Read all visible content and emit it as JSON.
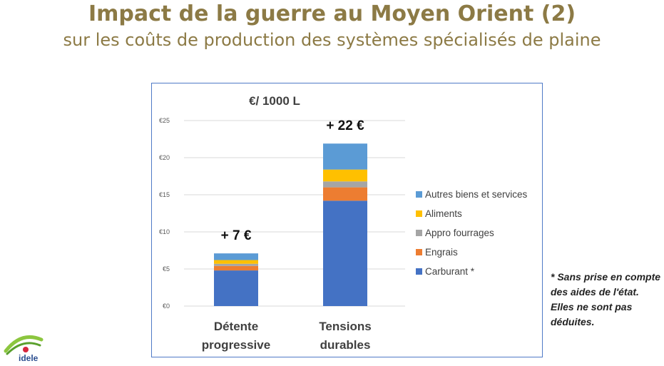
{
  "header": {
    "title": "Impact de la guerre au Moyen Orient (2)",
    "subtitle": "sur les coûts de production des systèmes spécialisés de plaine"
  },
  "note": {
    "text": "* Sans prise en compte des aides de l'état. Elles ne sont pas déduites."
  },
  "logo": {
    "text": "idele"
  },
  "chart_data": {
    "type": "bar",
    "stacked": true,
    "title": "€/ 1000 L",
    "xlabel": "",
    "ylabel": "",
    "ylim": [
      0,
      25
    ],
    "yticks": [
      "€0",
      "€5",
      "€10",
      "€15",
      "€20",
      "€25"
    ],
    "grid": true,
    "legend_position": "right",
    "categories": [
      "Détente progressive",
      "Tensions durables"
    ],
    "category_lines": [
      [
        "Détente",
        "progressive"
      ],
      [
        "Tensions",
        "durables"
      ]
    ],
    "totals_labels": [
      "+ 7 €",
      "+ 22 €"
    ],
    "series": [
      {
        "name": "Carburant *",
        "color": "#4472c4",
        "values": [
          4.8,
          14.2
        ]
      },
      {
        "name": "Engrais",
        "color": "#ed7d31",
        "values": [
          0.6,
          1.8
        ]
      },
      {
        "name": "Appro fourrages",
        "color": "#a5a5a5",
        "values": [
          0.3,
          0.8
        ]
      },
      {
        "name": "Aliments",
        "color": "#ffc000",
        "values": [
          0.5,
          1.6
        ]
      },
      {
        "name": "Autres biens et services",
        "color": "#5b9bd5",
        "values": [
          0.9,
          3.5
        ]
      }
    ]
  }
}
